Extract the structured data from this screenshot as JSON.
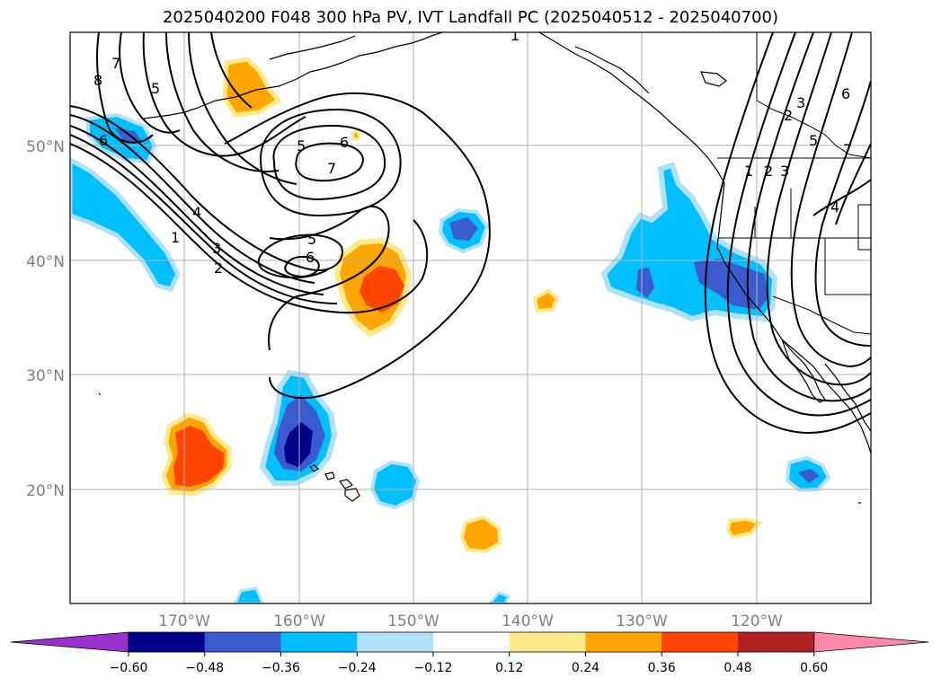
{
  "title": "2025040200 F048 300 hPa PV, IVT Landfall PC (2025040512 - 2025040700)",
  "map": {
    "lon_labels": [
      "170°W",
      "160°W",
      "150°W",
      "140°W",
      "130°W",
      "120°W"
    ],
    "lat_labels": [
      "50°N",
      "40°N",
      "30°N",
      "20°N"
    ],
    "gridlines": true,
    "coastlines": true,
    "borders": true
  },
  "pv_contour_labels": [
    "7",
    "8",
    "5",
    "6",
    "5",
    "6",
    "7",
    "4",
    "1",
    "3",
    "2",
    "5",
    "6",
    "1",
    "3",
    "2",
    "1",
    "2",
    "3",
    "5",
    "6",
    "7",
    "4"
  ],
  "colorbar": {
    "ticks": [
      "−0.60",
      "−0.48",
      "−0.36",
      "−0.24",
      "−0.12",
      "0.12",
      "0.24",
      "0.36",
      "0.48",
      "0.60"
    ],
    "colors": [
      "#9932CC",
      "#00008B",
      "#3A5BCD",
      "#00BFFF",
      "#AFE1FA",
      "#FFFFFF",
      "#FFE98A",
      "#FFA500",
      "#FF4500",
      "#B22222",
      "#FF88AA"
    ],
    "extend": "both"
  }
}
